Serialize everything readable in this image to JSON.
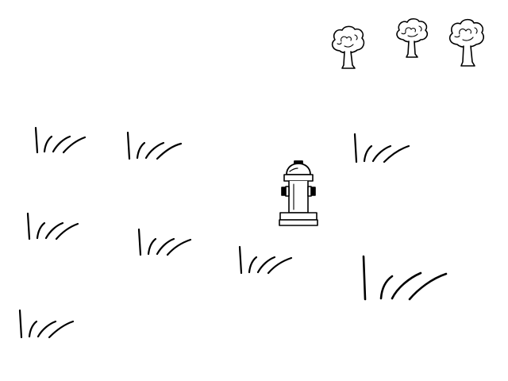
{
  "scene": {
    "background_color": "#ffffff",
    "ink_color": "#000000",
    "fill_color": "#ffffff"
  },
  "entities": {
    "trees": [
      {
        "name": "tree-1",
        "icon": "tree-icon"
      },
      {
        "name": "tree-2",
        "icon": "tree-icon"
      },
      {
        "name": "tree-3",
        "icon": "tree-icon"
      }
    ],
    "hydrant": {
      "name": "fire-hydrant",
      "icon": "fire-hydrant-icon"
    },
    "grass_tufts": [
      {
        "name": "grass-tuft-1",
        "icon": "grass-tuft-icon"
      },
      {
        "name": "grass-tuft-2",
        "icon": "grass-tuft-icon"
      },
      {
        "name": "grass-tuft-3",
        "icon": "grass-tuft-icon"
      },
      {
        "name": "grass-tuft-4",
        "icon": "grass-tuft-icon"
      },
      {
        "name": "grass-tuft-5",
        "icon": "grass-tuft-icon"
      },
      {
        "name": "grass-tuft-6",
        "icon": "grass-tuft-icon"
      },
      {
        "name": "grass-tuft-7",
        "icon": "grass-tuft-icon"
      },
      {
        "name": "grass-tuft-8",
        "icon": "grass-tuft-icon"
      }
    ]
  }
}
